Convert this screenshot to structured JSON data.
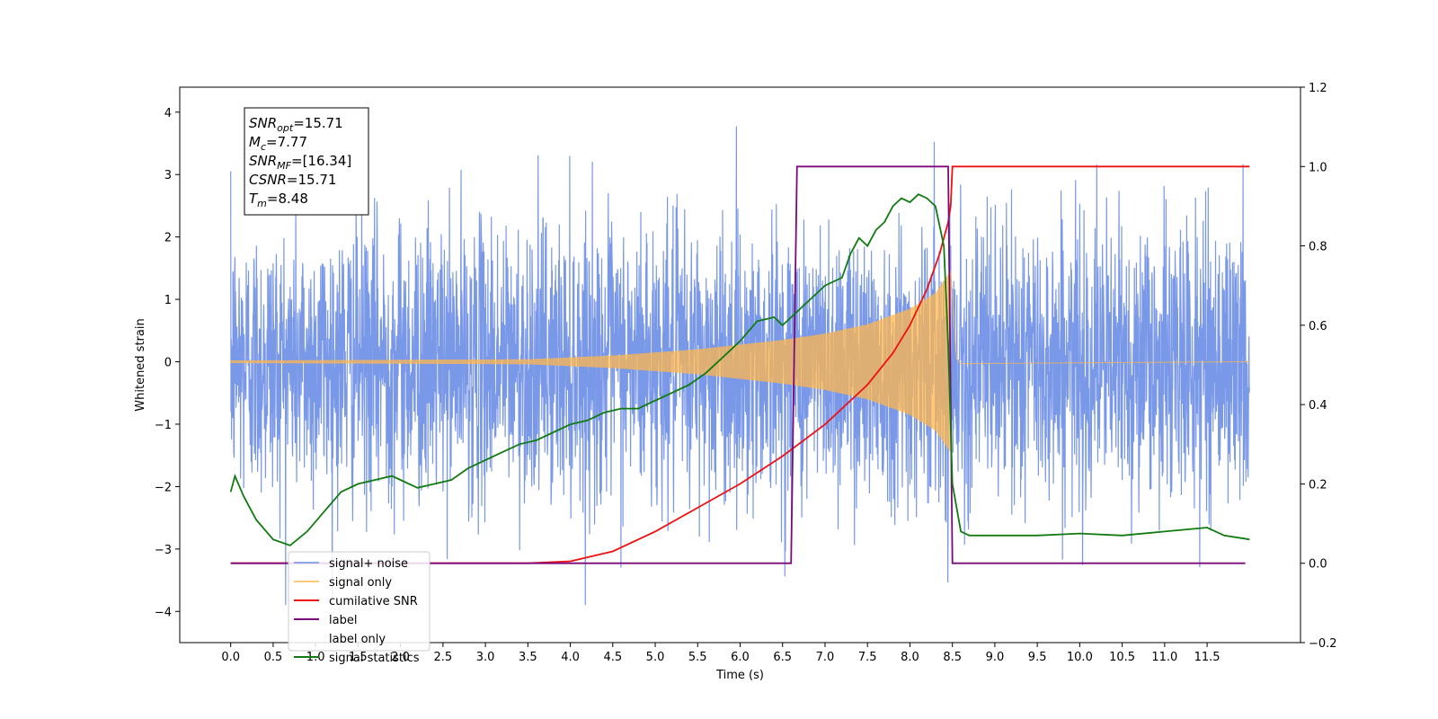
{
  "chart_data": {
    "type": "line",
    "xlabel": "Time (s)",
    "ylabel": "Whitened strain",
    "xlim": [
      -0.6,
      12.6
    ],
    "ylim_left": [
      -4.5,
      4.4
    ],
    "ylim_right": [
      -0.2,
      1.2
    ],
    "x_ticks": [
      0.0,
      0.5,
      1.0,
      1.5,
      2.0,
      2.5,
      3.0,
      3.5,
      4.0,
      4.5,
      5.0,
      5.5,
      6.0,
      6.5,
      7.0,
      7.5,
      8.0,
      8.5,
      9.0,
      9.5,
      10.0,
      10.5,
      11.0,
      11.5
    ],
    "x_tick_labels": [
      "0.0",
      "0.5",
      "1.0",
      "1.5",
      "2.0",
      "2.5",
      "3.0",
      "3.5",
      "4.0",
      "4.5",
      "5.0",
      "5.5",
      "6.0",
      "6.5",
      "7.0",
      "7.5",
      "8.0",
      "8.5",
      "9.0",
      "9.5",
      "10.0",
      "10.5",
      "11.0",
      "11.5"
    ],
    "y_ticks_left": [
      -4,
      -3,
      -2,
      -1,
      0,
      1,
      2,
      3,
      4
    ],
    "y_tick_labels_left": [
      "−4",
      "−3",
      "−2",
      "−1",
      "0",
      "1",
      "2",
      "3",
      "4"
    ],
    "y_ticks_right": [
      -0.2,
      0.0,
      0.2,
      0.4,
      0.6,
      0.8,
      1.0,
      1.2
    ],
    "y_tick_labels_right": [
      "−0.2",
      "0.0",
      "0.2",
      "0.4",
      "0.6",
      "0.8",
      "1.0",
      "1.2"
    ],
    "annotation": [
      {
        "base": "SNR",
        "sub": "opt",
        "value": "=15.71"
      },
      {
        "base": "M",
        "sub": "c",
        "value": "=7.77"
      },
      {
        "base": "SNR",
        "sub": "MF",
        "value": "=[16.34]"
      },
      {
        "base": "CSNR",
        "sub": "",
        "value": "=15.71"
      },
      {
        "base": "T",
        "sub": "m",
        "value": "=8.48"
      }
    ],
    "legend_placement": "lower-left",
    "series": [
      {
        "name": "signal+ noise",
        "color": "#6f8fe6",
        "axis": "left",
        "kind": "noise",
        "x_range": [
          0.0,
          12.0
        ],
        "std": 1.1,
        "peak_excursions": [
          -4.1,
          3.95
        ]
      },
      {
        "name": "signal only",
        "color": "#ffb74d",
        "axis": "left",
        "kind": "chirp",
        "x_range": [
          0.0,
          8.48
        ],
        "envelope": [
          [
            0.0,
            0.02
          ],
          [
            3.5,
            0.04
          ],
          [
            4.5,
            0.1
          ],
          [
            5.5,
            0.2
          ],
          [
            6.5,
            0.35
          ],
          [
            7.0,
            0.45
          ],
          [
            7.5,
            0.6
          ],
          [
            8.0,
            0.85
          ],
          [
            8.3,
            1.1
          ],
          [
            8.48,
            1.45
          ]
        ]
      },
      {
        "name": "cumilative SNR",
        "color": "#ee1111",
        "axis": "right",
        "x": [
          0.0,
          3.5,
          4.0,
          4.5,
          5.0,
          5.5,
          6.0,
          6.5,
          7.0,
          7.5,
          7.8,
          8.0,
          8.2,
          8.35,
          8.45,
          8.48,
          8.5,
          12.0
        ],
        "y": [
          0.0,
          0.0,
          0.005,
          0.03,
          0.08,
          0.14,
          0.2,
          0.27,
          0.35,
          0.45,
          0.53,
          0.6,
          0.69,
          0.78,
          0.86,
          0.9,
          1.0,
          1.0
        ]
      },
      {
        "name": "label",
        "color": "#7a0a7a",
        "axis": "right",
        "x": [
          0.0,
          6.6,
          6.67,
          8.45,
          8.5,
          11.95
        ],
        "y": [
          0.0,
          0.0,
          1.0,
          1.0,
          0.0,
          0.0
        ]
      },
      {
        "name": "label only",
        "color": "#ffffff",
        "axis": "right",
        "x": [],
        "y": []
      },
      {
        "name": "signal statistics",
        "color": "#117a11",
        "axis": "right",
        "x": [
          0.0,
          0.05,
          0.15,
          0.3,
          0.5,
          0.7,
          0.9,
          1.1,
          1.3,
          1.5,
          1.7,
          1.9,
          2.0,
          2.2,
          2.4,
          2.6,
          2.8,
          3.0,
          3.2,
          3.4,
          3.6,
          3.8,
          4.0,
          4.2,
          4.4,
          4.6,
          4.8,
          5.0,
          5.2,
          5.4,
          5.6,
          5.8,
          6.0,
          6.2,
          6.4,
          6.5,
          6.6,
          6.8,
          7.0,
          7.2,
          7.3,
          7.4,
          7.5,
          7.6,
          7.7,
          7.8,
          7.9,
          8.0,
          8.1,
          8.2,
          8.3,
          8.4,
          8.45,
          8.5,
          8.6,
          8.7,
          9.0,
          9.5,
          10.0,
          10.5,
          11.0,
          11.5,
          11.7,
          12.0
        ],
        "y": [
          0.18,
          0.22,
          0.17,
          0.11,
          0.06,
          0.045,
          0.08,
          0.13,
          0.18,
          0.2,
          0.21,
          0.22,
          0.21,
          0.19,
          0.2,
          0.21,
          0.24,
          0.26,
          0.28,
          0.3,
          0.31,
          0.33,
          0.35,
          0.36,
          0.38,
          0.39,
          0.39,
          0.41,
          0.43,
          0.45,
          0.48,
          0.52,
          0.56,
          0.61,
          0.62,
          0.6,
          0.62,
          0.66,
          0.7,
          0.72,
          0.78,
          0.82,
          0.8,
          0.84,
          0.86,
          0.9,
          0.92,
          0.91,
          0.93,
          0.92,
          0.9,
          0.8,
          0.55,
          0.2,
          0.08,
          0.07,
          0.07,
          0.07,
          0.075,
          0.07,
          0.08,
          0.09,
          0.07,
          0.06
        ]
      }
    ]
  }
}
